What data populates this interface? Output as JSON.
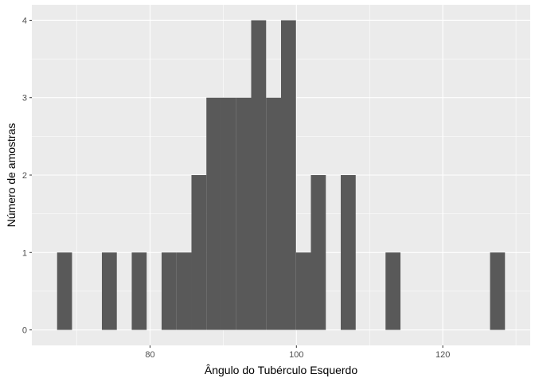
{
  "chart_data": {
    "type": "bar",
    "title": "",
    "xlabel": "Ângulo do Tubérculo Esquerdo",
    "ylabel": "Número de amostras",
    "bin_width": 2.04,
    "bins": [
      {
        "x0": 67.3,
        "count": 1
      },
      {
        "x0": 69.34,
        "count": 0
      },
      {
        "x0": 71.38,
        "count": 0
      },
      {
        "x0": 73.42,
        "count": 1
      },
      {
        "x0": 75.46,
        "count": 0
      },
      {
        "x0": 77.5,
        "count": 1
      },
      {
        "x0": 79.54,
        "count": 0
      },
      {
        "x0": 81.58,
        "count": 1
      },
      {
        "x0": 83.62,
        "count": 1
      },
      {
        "x0": 85.66,
        "count": 2
      },
      {
        "x0": 87.7,
        "count": 3
      },
      {
        "x0": 89.74,
        "count": 3
      },
      {
        "x0": 91.78,
        "count": 3
      },
      {
        "x0": 93.82,
        "count": 4
      },
      {
        "x0": 95.86,
        "count": 3
      },
      {
        "x0": 97.9,
        "count": 4
      },
      {
        "x0": 99.94,
        "count": 1
      },
      {
        "x0": 101.98,
        "count": 2
      },
      {
        "x0": 104.02,
        "count": 0
      },
      {
        "x0": 106.06,
        "count": 2
      },
      {
        "x0": 108.1,
        "count": 0
      },
      {
        "x0": 110.14,
        "count": 0
      },
      {
        "x0": 112.18,
        "count": 1
      },
      {
        "x0": 114.22,
        "count": 0
      },
      {
        "x0": 116.26,
        "count": 0
      },
      {
        "x0": 118.3,
        "count": 0
      },
      {
        "x0": 120.34,
        "count": 0
      },
      {
        "x0": 122.38,
        "count": 0
      },
      {
        "x0": 124.42,
        "count": 0
      },
      {
        "x0": 126.46,
        "count": 1
      }
    ],
    "xlim": [
      63.85,
      131.95
    ],
    "ylim": [
      -0.2,
      4.2
    ],
    "x_ticks": [
      80,
      100,
      120
    ],
    "y_ticks": [
      0,
      1,
      2,
      3,
      4
    ],
    "grid": true,
    "colors": {
      "panel": "#ebebeb",
      "grid_major": "#ffffff",
      "bar": "#595959"
    }
  }
}
